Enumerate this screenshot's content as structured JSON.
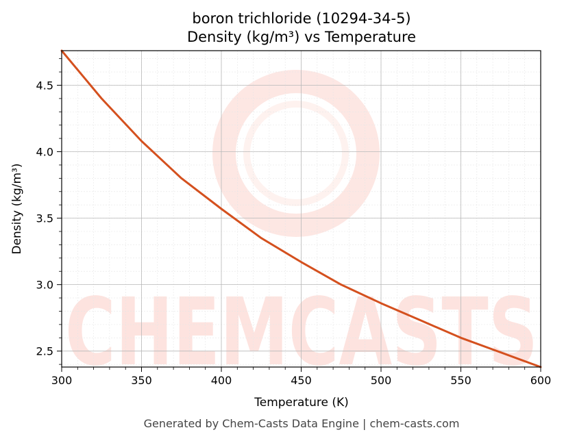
{
  "chart_data": {
    "type": "line",
    "title": "boron trichloride (10294-34-5)",
    "subtitle": "Density (kg/m³) vs Temperature",
    "xlabel": "Temperature (K)",
    "ylabel": "Density (kg/m³)",
    "xlim": [
      300,
      600
    ],
    "ylim": [
      2.38,
      4.76
    ],
    "xticks": [
      300,
      350,
      400,
      450,
      500,
      550,
      600
    ],
    "xtick_labels": [
      "300",
      "350",
      "400",
      "450",
      "500",
      "550",
      "600"
    ],
    "yticks": [
      2.5,
      3.0,
      3.5,
      4.0,
      4.5
    ],
    "ytick_labels": [
      "2.5",
      "3.0",
      "3.5",
      "4.0",
      "4.5"
    ],
    "grid": true,
    "legend": "none",
    "series": [
      {
        "color": "#d4501e",
        "x": [
          300,
          325,
          350,
          375,
          400,
          425,
          450,
          475,
          500,
          525,
          550,
          575,
          600
        ],
        "y": [
          4.76,
          4.4,
          4.08,
          3.8,
          3.57,
          3.35,
          3.17,
          3.0,
          2.86,
          2.73,
          2.6,
          2.49,
          2.38
        ]
      }
    ]
  },
  "watermark": {
    "text": "CHEMCASTS",
    "color": "#fde3df"
  },
  "footer": "Generated by Chem-Casts Data Engine | chem-casts.com"
}
